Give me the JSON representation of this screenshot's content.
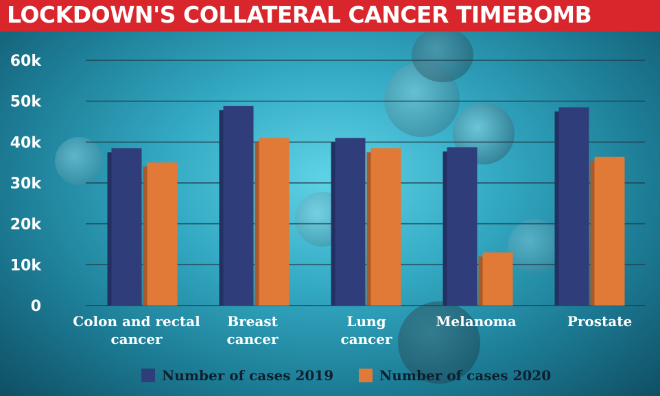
{
  "header": {
    "title": "LOCKDOWN'S COLLATERAL CANCER TIMEBOMB"
  },
  "colors": {
    "title_bar": "#d8262c",
    "series_2019": "#2f3d7a",
    "series_2020": "#e07a36"
  },
  "chart_data": {
    "type": "bar",
    "title": "LOCKDOWN'S COLLATERAL CANCER TIMEBOMB",
    "categories": [
      [
        "Colon and rectal",
        "cancer"
      ],
      [
        "Breast",
        "cancer"
      ],
      [
        "Lung",
        "cancer"
      ],
      [
        "Melanoma"
      ],
      [
        "Prostate"
      ]
    ],
    "series": [
      {
        "name": "Number of cases 2019",
        "values": [
          38500,
          48800,
          41000,
          38700,
          48500
        ]
      },
      {
        "name": "Number of cases 2020",
        "values": [
          35000,
          41000,
          38500,
          13000,
          36400
        ]
      }
    ],
    "ylim": [
      0,
      60000
    ],
    "yticks": [
      {
        "value": 0,
        "label": "0"
      },
      {
        "value": 10000,
        "label": "10k"
      },
      {
        "value": 20000,
        "label": "20k"
      },
      {
        "value": 30000,
        "label": "30k"
      },
      {
        "value": 40000,
        "label": "40k"
      },
      {
        "value": 50000,
        "label": "50k"
      },
      {
        "value": 60000,
        "label": "60k"
      }
    ],
    "grid": true,
    "legend_position": "bottom"
  }
}
